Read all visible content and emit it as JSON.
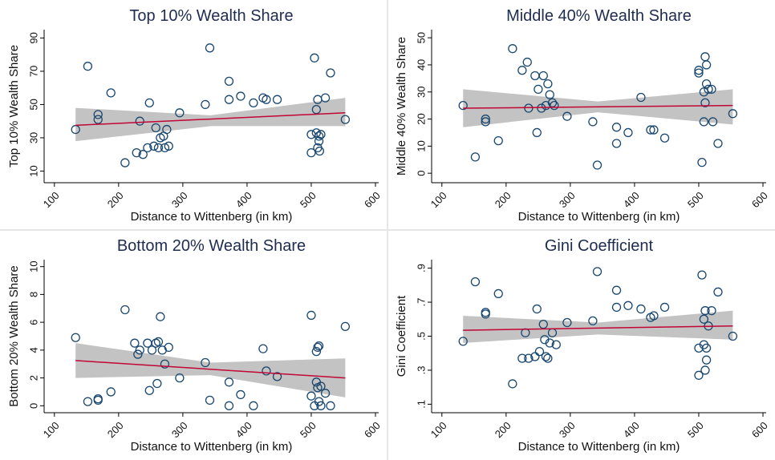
{
  "chart_data": [
    {
      "type": "scatter",
      "title": "Top 10% Wealth Share",
      "xlabel": "Distance to Wittenberg (in km)",
      "ylabel": "Top 10% Wealth Share",
      "marker_color": "#1a476f",
      "fit_color": "#c10534",
      "band_color": "#bdbdbd",
      "xlim": [
        84,
        605
      ],
      "xticks": [
        100,
        200,
        300,
        400,
        500,
        600
      ],
      "ylim": [
        3,
        95
      ],
      "yticks": [
        10,
        30,
        50,
        70,
        90
      ],
      "x": [
        133,
        152,
        168,
        168,
        188,
        210,
        228,
        233,
        238,
        245,
        248,
        255,
        258,
        262,
        265,
        270,
        272,
        275,
        278,
        295,
        335,
        342,
        372,
        372,
        390,
        410,
        425,
        430,
        447,
        500,
        500,
        505,
        508,
        508,
        510,
        510,
        512,
        512,
        513,
        515,
        522,
        530,
        553
      ],
      "y": [
        35,
        73,
        44,
        41,
        57,
        15,
        21,
        40,
        20,
        24,
        51,
        25,
        36,
        24,
        30,
        31,
        24,
        35,
        25,
        45,
        50,
        84,
        64,
        53,
        55,
        51,
        54,
        53,
        53,
        21,
        32,
        78,
        33,
        47,
        53,
        24,
        28,
        31,
        22,
        32,
        54,
        69,
        41
      ],
      "fit": {
        "x": [
          133,
          553
        ],
        "y": [
          37.5,
          45
        ]
      },
      "band": {
        "x": [
          133,
          343,
          553
        ],
        "lower": [
          28,
          37,
          37
        ],
        "upper": [
          48,
          43.5,
          54
        ]
      }
    },
    {
      "type": "scatter",
      "title": "Middle 40% Wealth Share",
      "xlabel": "Distance to Wittenberg (in km)",
      "ylabel": "Middle 40% Wealth Share",
      "marker_color": "#1a476f",
      "fit_color": "#c10534",
      "band_color": "#bdbdbd",
      "xlim": [
        84,
        605
      ],
      "xticks": [
        100,
        200,
        300,
        400,
        500,
        600
      ],
      "ylim": [
        -3.5,
        53
      ],
      "yticks": [
        0,
        10,
        20,
        30,
        40,
        50
      ],
      "x": [
        133,
        152,
        168,
        168,
        188,
        210,
        225,
        233,
        235,
        245,
        248,
        250,
        255,
        258,
        262,
        265,
        268,
        272,
        275,
        295,
        335,
        342,
        372,
        372,
        390,
        410,
        425,
        430,
        447,
        500,
        500,
        505,
        508,
        508,
        510,
        510,
        512,
        512,
        515,
        520,
        522,
        530,
        553
      ],
      "y": [
        25,
        6,
        19,
        20,
        12,
        46,
        38,
        41,
        24,
        36,
        15,
        31,
        24,
        36,
        25,
        33,
        29,
        26,
        25,
        21,
        19,
        3,
        17,
        11,
        15,
        28,
        16,
        16,
        13,
        38,
        37,
        4,
        30,
        19,
        26,
        43,
        33,
        40,
        31,
        31,
        19,
        11,
        22
      ],
      "fit": {
        "x": [
          133,
          553
        ],
        "y": [
          24,
          25
        ]
      },
      "band": {
        "x": [
          133,
          343,
          553
        ],
        "lower": [
          17,
          22.5,
          18
        ],
        "upper": [
          31,
          26.5,
          31
        ]
      }
    },
    {
      "type": "scatter",
      "title": "Bottom 20% Wealth Share",
      "xlabel": "Distance to Wittenberg (in km)",
      "ylabel": "Bottom 20% Wealth Share",
      "marker_color": "#1a476f",
      "fit_color": "#c10534",
      "band_color": "#bdbdbd",
      "xlim": [
        84,
        605
      ],
      "xticks": [
        100,
        200,
        300,
        400,
        500,
        600
      ],
      "ylim": [
        -0.5,
        10.5
      ],
      "yticks": [
        0,
        2,
        4,
        6,
        8,
        10
      ],
      "x": [
        133,
        152,
        168,
        168,
        188,
        210,
        225,
        230,
        233,
        245,
        248,
        252,
        258,
        260,
        262,
        265,
        268,
        272,
        278,
        295,
        335,
        342,
        372,
        372,
        390,
        410,
        425,
        430,
        447,
        500,
        500,
        505,
        508,
        508,
        510,
        510,
        512,
        512,
        515,
        515,
        522,
        530,
        553
      ],
      "y": [
        4.9,
        0.3,
        0.5,
        0.4,
        1.0,
        6.9,
        4.5,
        3.7,
        4.0,
        4.5,
        1.1,
        4.0,
        4.5,
        1.6,
        4.6,
        6.4,
        4.0,
        3.0,
        4.2,
        2.0,
        3.1,
        0.4,
        1.7,
        0.0,
        0.8,
        0.0,
        4.1,
        2.5,
        2.1,
        6.5,
        0.7,
        0.0,
        3.9,
        1.7,
        4.2,
        1.3,
        4.3,
        0.3,
        1.4,
        0.0,
        0.9,
        0.0,
        5.7
      ],
      "fit": {
        "x": [
          133,
          553
        ],
        "y": [
          3.25,
          2.0
        ]
      },
      "band": {
        "x": [
          133,
          343,
          553
        ],
        "lower": [
          2.0,
          2.2,
          0.6
        ],
        "upper": [
          4.5,
          3.1,
          3.4
        ]
      }
    },
    {
      "type": "scatter",
      "title": "Gini Coefficient",
      "xlabel": "Distance to Wittenberg (in km)",
      "ylabel": "Gini Coefficient",
      "marker_color": "#1a476f",
      "fit_color": "#c10534",
      "band_color": "#bdbdbd",
      "xlim": [
        84,
        605
      ],
      "xticks": [
        100,
        200,
        300,
        400,
        500,
        600
      ],
      "ylim": [
        0.05,
        0.95
      ],
      "yticks": [
        {
          "value": 0.1,
          "label": ".1"
        },
        {
          "value": 0.3,
          "label": ".3"
        },
        {
          "value": 0.5,
          "label": ".5"
        },
        {
          "value": 0.7,
          "label": ".7"
        },
        {
          "value": 0.9,
          "label": ".9"
        }
      ],
      "x": [
        133,
        152,
        168,
        168,
        188,
        210,
        225,
        230,
        235,
        245,
        248,
        252,
        258,
        260,
        262,
        265,
        268,
        272,
        278,
        295,
        335,
        342,
        372,
        372,
        390,
        410,
        425,
        430,
        447,
        500,
        500,
        505,
        508,
        508,
        510,
        510,
        512,
        512,
        515,
        520,
        530,
        553
      ],
      "y": [
        0.47,
        0.82,
        0.64,
        0.63,
        0.75,
        0.22,
        0.37,
        0.52,
        0.37,
        0.38,
        0.66,
        0.41,
        0.57,
        0.48,
        0.38,
        0.37,
        0.46,
        0.52,
        0.45,
        0.58,
        0.59,
        0.88,
        0.77,
        0.67,
        0.68,
        0.66,
        0.61,
        0.62,
        0.67,
        0.27,
        0.43,
        0.86,
        0.45,
        0.6,
        0.65,
        0.3,
        0.36,
        0.43,
        0.56,
        0.65,
        0.76,
        0.5
      ],
      "fit": {
        "x": [
          133,
          553
        ],
        "y": [
          0.535,
          0.56
        ]
      },
      "band": {
        "x": [
          133,
          343,
          553
        ],
        "lower": [
          0.46,
          0.51,
          0.48
        ],
        "upper": [
          0.62,
          0.58,
          0.65
        ]
      }
    }
  ]
}
